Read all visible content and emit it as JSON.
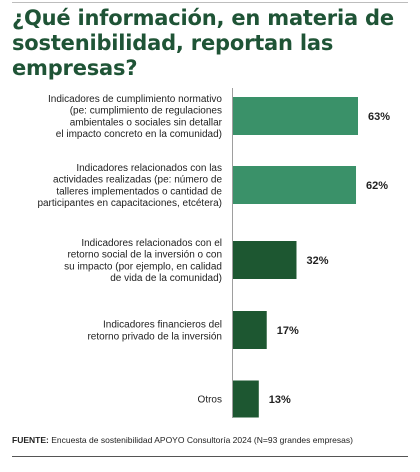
{
  "title": "¿Qué información, en materia de sostenibilidad, reportan las empresas?",
  "footer": {
    "label": "FUENTE:",
    "text": "Encuesta de sostenibilidad APOYO Consultoría 2024 (N=93 grandes empresas)"
  },
  "chart_data": {
    "type": "bar",
    "orientation": "horizontal",
    "categories": [
      [
        "Indicadores de cumplimiento normativo",
        "(pe: cumplimiento de regulaciones",
        "ambientales  o sociales sin detallar",
        "el impacto concreto en la comunidad)"
      ],
      [
        "Indicadores relacionados con las",
        "actividades realizadas (pe: número de",
        "talleres implementados o  cantidad de",
        "participantes  en capacitaciones, etcétera)"
      ],
      [
        "Indicadores relacionados con el",
        "retorno social de la inversión o con",
        "su impacto (por ejemplo, en calidad",
        "de vida de la comunidad)"
      ],
      [
        "Indicadores financieros del",
        "retorno privado de la inversión"
      ],
      [
        "Otros"
      ]
    ],
    "values": [
      63,
      62,
      32,
      17,
      13
    ],
    "value_labels": [
      "63%",
      "62%",
      "32%",
      "17%",
      "13%"
    ],
    "bar_colors": [
      "#3a9169",
      "#3a9169",
      "#1d5731",
      "#1d5731",
      "#1d5731"
    ],
    "xlim": [
      0,
      63
    ],
    "grid": false,
    "legend": "none"
  }
}
